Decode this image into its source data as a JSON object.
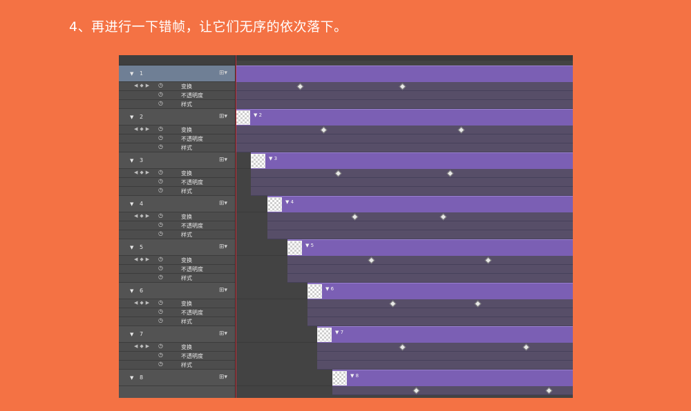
{
  "heading": "4、再进行一下错帧，让它们无序的依次落下。",
  "layers": [
    {
      "name": "1",
      "props": [
        "变换",
        "不透明度",
        "样式"
      ]
    },
    {
      "name": "2",
      "props": [
        "变换",
        "不透明度",
        "样式"
      ]
    },
    {
      "name": "3",
      "props": [
        "变换",
        "不透明度",
        "样式"
      ]
    },
    {
      "name": "4",
      "props": [
        "变换",
        "不透明度",
        "样式"
      ]
    },
    {
      "name": "5",
      "props": [
        "变换",
        "不透明度",
        "样式"
      ]
    },
    {
      "name": "6",
      "props": [
        "变换",
        "不透明度",
        "样式"
      ]
    },
    {
      "name": "7",
      "props": [
        "变换",
        "不透明度",
        "样式"
      ]
    },
    {
      "name": "8",
      "props": []
    }
  ],
  "track_labels": [
    "2",
    "3",
    "4",
    "5",
    "6",
    "7",
    "8"
  ],
  "icons": {
    "collapse": "triangle-down-icon",
    "fx": "layer-style-icon",
    "nav": "keyframe-navigator-icon",
    "stopwatch": "stopwatch-icon"
  },
  "colors": {
    "background": "#F47244",
    "track": "#7b5fb4",
    "selected_layer": "#6f7f95",
    "playhead": "#d0303a"
  }
}
